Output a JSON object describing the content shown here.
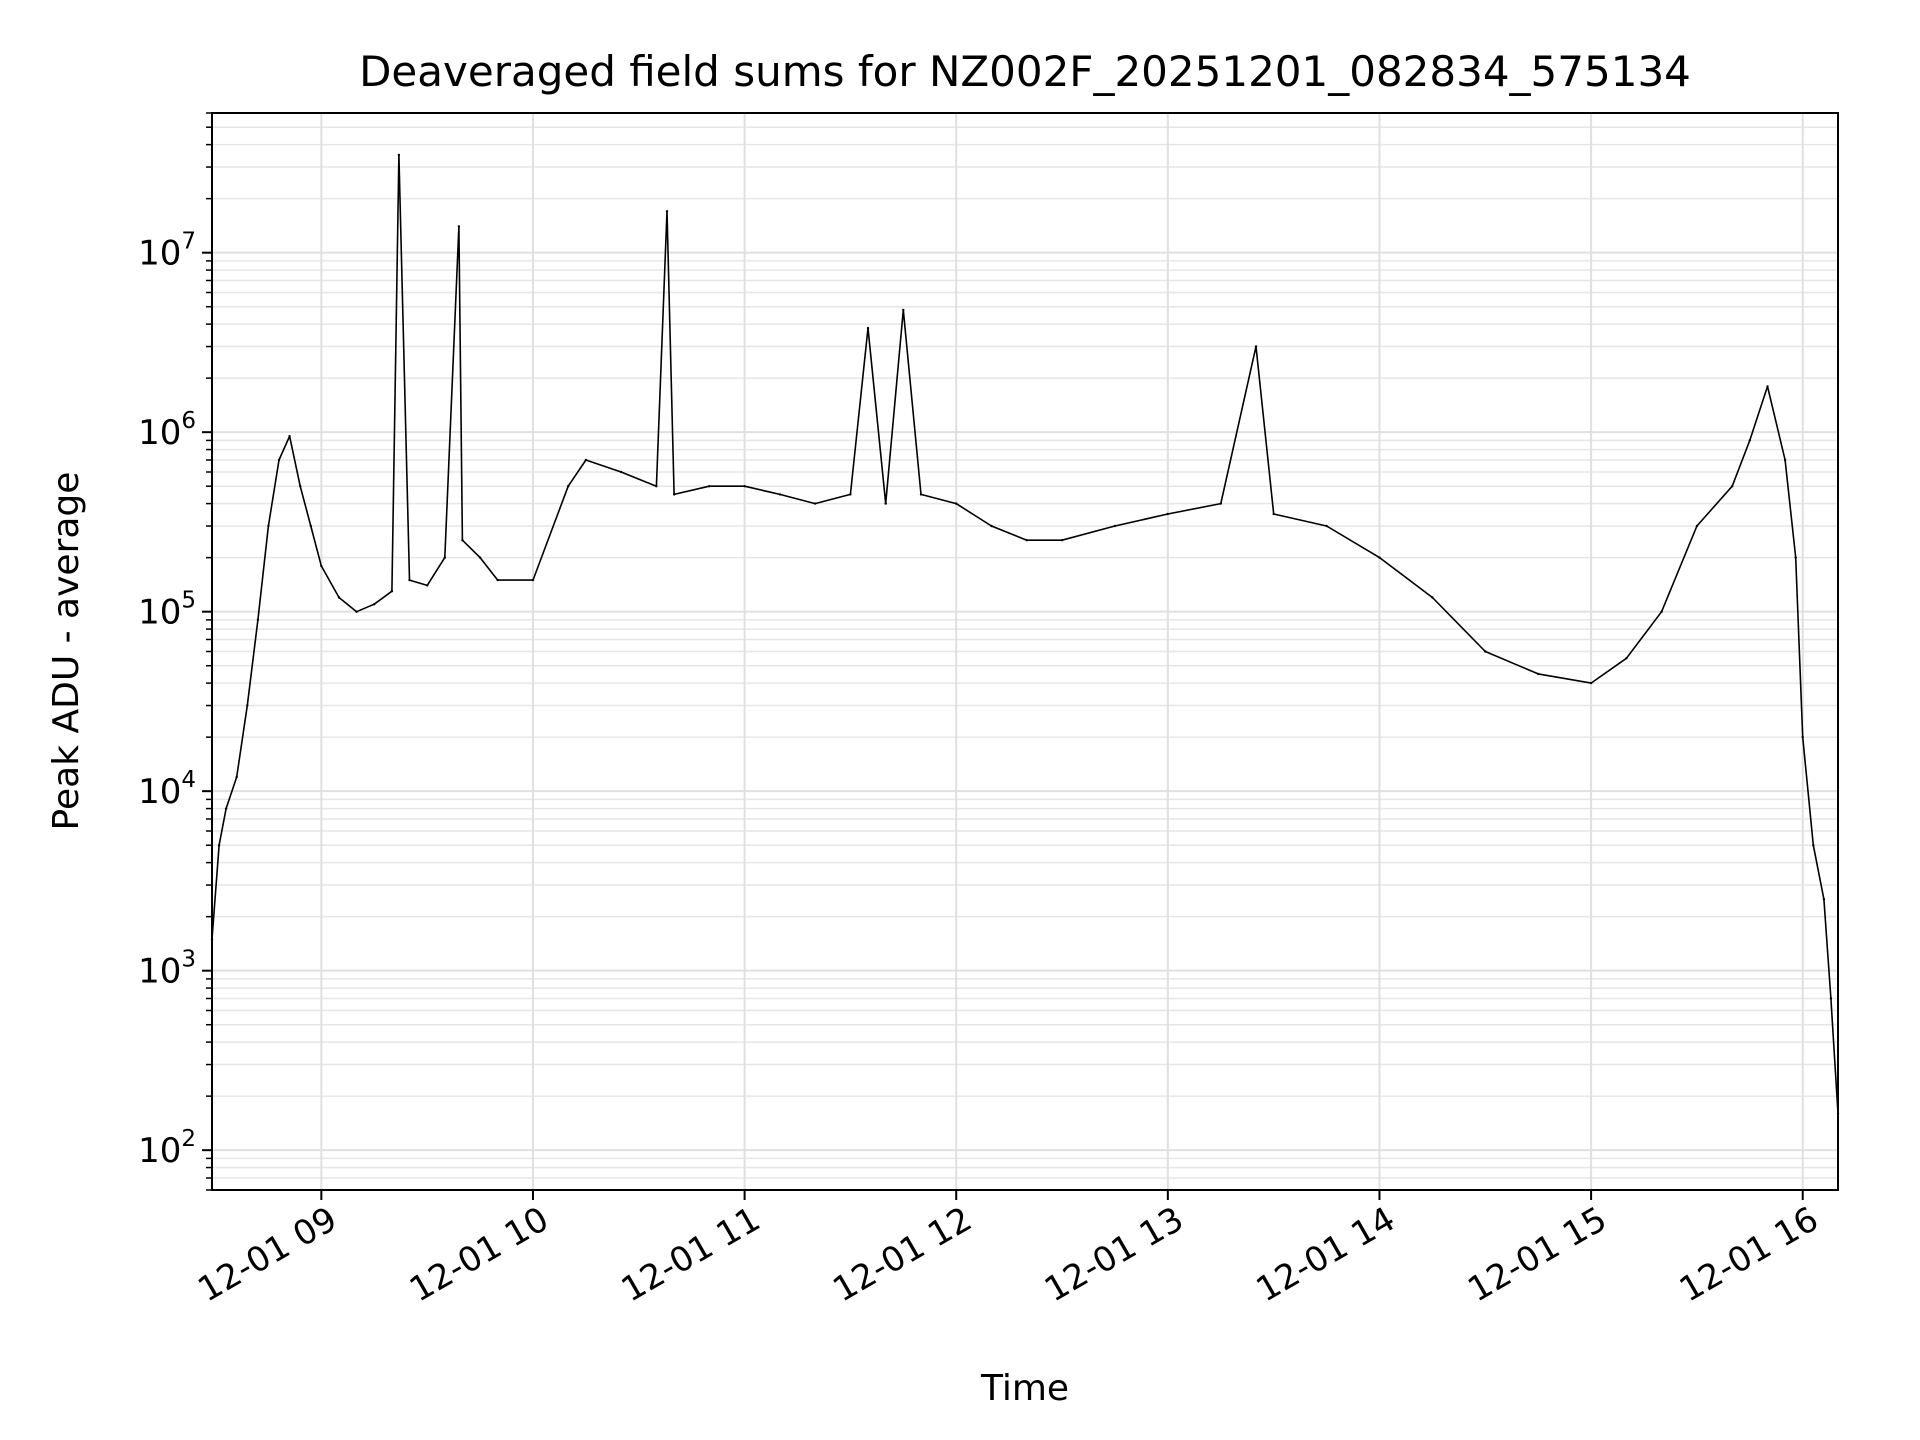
{
  "chart_data": {
    "type": "line",
    "title": "Deaveraged field sums for NZ002F_20251201_082834_575134",
    "xlabel": "Time",
    "ylabel": "Peak ADU - average",
    "yscale": "log",
    "grid": true,
    "xlim": [
      "2025-12-01 08:29",
      "2025-12-01 16:10"
    ],
    "ylim": [
      60,
      60000000
    ],
    "x_ticks": [
      {
        "value": "2025-12-01 09:00",
        "label": "12-01 09"
      },
      {
        "value": "2025-12-01 10:00",
        "label": "12-01 10"
      },
      {
        "value": "2025-12-01 11:00",
        "label": "12-01 11"
      },
      {
        "value": "2025-12-01 12:00",
        "label": "12-01 12"
      },
      {
        "value": "2025-12-01 13:00",
        "label": "12-01 13"
      },
      {
        "value": "2025-12-01 14:00",
        "label": "12-01 14"
      },
      {
        "value": "2025-12-01 15:00",
        "label": "12-01 15"
      },
      {
        "value": "2025-12-01 16:00",
        "label": "12-01 16"
      }
    ],
    "y_ticks": [
      {
        "value": 100,
        "base": "10",
        "exp": "2"
      },
      {
        "value": 1000,
        "base": "10",
        "exp": "3"
      },
      {
        "value": 10000,
        "base": "10",
        "exp": "4"
      },
      {
        "value": 100000,
        "base": "10",
        "exp": "5"
      },
      {
        "value": 1000000,
        "base": "10",
        "exp": "6"
      },
      {
        "value": 10000000,
        "base": "10",
        "exp": "7"
      }
    ],
    "line_color": "#000000",
    "series": [
      {
        "x": [
          "2025-12-01 08:29",
          "2025-12-01 08:31",
          "2025-12-01 08:33",
          "2025-12-01 08:36",
          "2025-12-01 08:39",
          "2025-12-01 08:42",
          "2025-12-01 08:45",
          "2025-12-01 08:48",
          "2025-12-01 08:51",
          "2025-12-01 08:54",
          "2025-12-01 08:57",
          "2025-12-01 09:00",
          "2025-12-01 09:05",
          "2025-12-01 09:10",
          "2025-12-01 09:15",
          "2025-12-01 09:20",
          "2025-12-01 09:22",
          "2025-12-01 09:25",
          "2025-12-01 09:30",
          "2025-12-01 09:35",
          "2025-12-01 09:39",
          "2025-12-01 09:40",
          "2025-12-01 09:45",
          "2025-12-01 09:50",
          "2025-12-01 10:00",
          "2025-12-01 10:10",
          "2025-12-01 10:15",
          "2025-12-01 10:25",
          "2025-12-01 10:35",
          "2025-12-01 10:38",
          "2025-12-01 10:40",
          "2025-12-01 10:50",
          "2025-12-01 11:00",
          "2025-12-01 11:10",
          "2025-12-01 11:20",
          "2025-12-01 11:30",
          "2025-12-01 11:35",
          "2025-12-01 11:40",
          "2025-12-01 11:45",
          "2025-12-01 11:50",
          "2025-12-01 12:00",
          "2025-12-01 12:10",
          "2025-12-01 12:20",
          "2025-12-01 12:30",
          "2025-12-01 12:45",
          "2025-12-01 13:00",
          "2025-12-01 13:15",
          "2025-12-01 13:25",
          "2025-12-01 13:30",
          "2025-12-01 13:45",
          "2025-12-01 14:00",
          "2025-12-01 14:15",
          "2025-12-01 14:30",
          "2025-12-01 14:45",
          "2025-12-01 15:00",
          "2025-12-01 15:10",
          "2025-12-01 15:20",
          "2025-12-01 15:30",
          "2025-12-01 15:40",
          "2025-12-01 15:45",
          "2025-12-01 15:50",
          "2025-12-01 15:55",
          "2025-12-01 15:58",
          "2025-12-01 16:00",
          "2025-12-01 16:03",
          "2025-12-01 16:06",
          "2025-12-01 16:08",
          "2025-12-01 16:10"
        ],
        "y": [
          1500,
          5000,
          8000,
          12000,
          30000,
          90000,
          300000,
          700000,
          950000,
          500000,
          300000,
          180000,
          120000,
          100000,
          110000,
          130000,
          35000000,
          150000,
          140000,
          200000,
          14000000,
          250000,
          200000,
          150000,
          150000,
          500000,
          700000,
          600000,
          500000,
          17000000,
          450000,
          500000,
          500000,
          450000,
          400000,
          450000,
          3800000,
          400000,
          4800000,
          450000,
          400000,
          300000,
          250000,
          250000,
          300000,
          350000,
          400000,
          3000000,
          350000,
          300000,
          200000,
          120000,
          60000,
          45000,
          40000,
          55000,
          100000,
          300000,
          500000,
          900000,
          1800000,
          700000,
          200000,
          20000,
          5000,
          2500,
          700,
          160
        ]
      }
    ]
  }
}
